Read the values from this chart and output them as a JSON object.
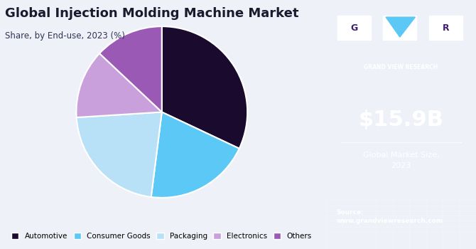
{
  "title": "Global Injection Molding Machine Market",
  "subtitle": "Share, by End-use, 2023 (%)",
  "segments": [
    "Automotive",
    "Consumer Goods",
    "Packaging",
    "Electronics",
    "Others"
  ],
  "values": [
    32,
    20,
    22,
    13,
    13
  ],
  "colors": [
    "#1a0a2e",
    "#5bc8f5",
    "#b8e0f7",
    "#c9a0dc",
    "#9b59b6"
  ],
  "start_angle": 90,
  "sidebar_bg": "#3b1f6e",
  "sidebar_bottom_bg": "#5a6aaa",
  "market_size": "$15.9B",
  "market_label": "Global Market Size,\n2023",
  "source_text": "Source:\nwww.grandviewresearch.com",
  "main_bg": "#eef2f8",
  "logo_triangle_color": "#5bc8f5"
}
